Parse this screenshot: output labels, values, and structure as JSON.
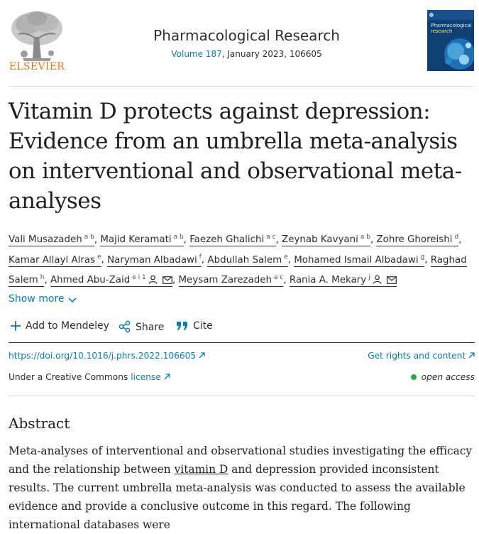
{
  "journal": {
    "publisher": "ELSEVIER",
    "name": "Pharmacological Research",
    "volume_label": "Volume 187",
    "issue_info": ", January 2023, 106605",
    "cover_line1": "Pharmacological",
    "cover_line2": "research"
  },
  "article": {
    "title": "Vitamin D protects against depression: Evidence from an umbrella meta-analysis on interventional and observational meta-analyses"
  },
  "authors": [
    {
      "name": "Vali Musazadeh",
      "aff": "a b",
      "sep": ", "
    },
    {
      "name": "Majid Keramati",
      "aff": "a b",
      "sep": ", "
    },
    {
      "name": "Faezeh Ghalichi",
      "aff": "a c",
      "sep": ", "
    },
    {
      "name": "Zeynab Kavyani",
      "aff": "a b",
      "sep": ", "
    },
    {
      "name": "Zohre Ghoreishi",
      "aff": "d",
      "sep": ", "
    },
    {
      "name": "Kamar Allayl Alras",
      "aff": "e",
      "sep": ", "
    },
    {
      "name": "Naryman Albadawi",
      "aff": "f",
      "sep": ", "
    },
    {
      "name": "Abdullah Salem",
      "aff": "e",
      "sep": ", "
    },
    {
      "name": "Mohamed Ismail Albadawi",
      "aff": "g",
      "sep": ", "
    },
    {
      "name": "Raghad Salem",
      "aff": "h",
      "sep": ", "
    },
    {
      "name": "Ahmed Abu-Zaid",
      "aff": "e i 1",
      "sep": ", "
    },
    {
      "name": "Meysam Zarezadeh",
      "aff": "a c",
      "sep": ", "
    },
    {
      "name": "Rania A. Mekary",
      "aff": "j",
      "sep": ""
    }
  ],
  "corresponding_icons": [
    "person-icon",
    "mail-icon"
  ],
  "show_more": "Show more",
  "actions": {
    "mendeley": "Add to Mendeley",
    "share": "Share",
    "cite": "Cite"
  },
  "links": {
    "doi": "https://doi.org/10.1016/j.phrs.2022.106605",
    "rights": "Get rights and content",
    "license_prefix": "Under a Creative Commons ",
    "license_link": "license",
    "open_access": "open access"
  },
  "abstract": {
    "heading": "Abstract",
    "before_link": "Meta-analyses of interventional and observational studies investigating the efficacy and the relationship between ",
    "link_text": "vitamin D",
    "after_link": " and depression provided inconsistent results. The current umbrella meta-analysis was conducted to assess the available evidence and provide a conclusive outcome in this regard. The following international databases were"
  },
  "colors": {
    "link": "#0c7db1",
    "publisher_orange": "#e9711c",
    "open_access_green": "#2aa746",
    "text": "#1f1f1f"
  }
}
